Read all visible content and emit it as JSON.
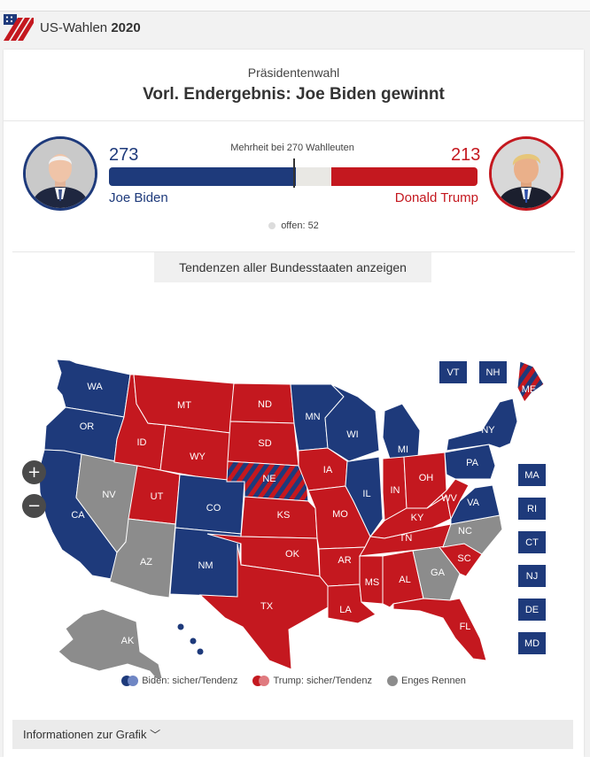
{
  "brand": {
    "prefix": "US-Wahlen",
    "year": "2020"
  },
  "header": {
    "kicker": "Präsidentenwahl",
    "headline": "Vorl. Endergebnis: Joe Biden gewinnt"
  },
  "race": {
    "majority_label": "Mehrheit bei 270 Wahlleuten",
    "total": 538,
    "majority": 270,
    "biden": {
      "name": "Joe Biden",
      "votes": "273",
      "votes_value": 273,
      "color": "#1e3a7b"
    },
    "trump": {
      "name": "Donald Trump",
      "votes": "213",
      "votes_value": 213,
      "color": "#c4181f"
    },
    "open_label": "offen: 52",
    "open_value": 52,
    "open_color": "#e9e8e4"
  },
  "toggle_button": {
    "label": "Tendenzen aller Bundesstaaten anzeigen"
  },
  "colors": {
    "biden": "#1e3a7b",
    "biden_lean": "#6f86c4",
    "trump": "#c4181f",
    "trump_lean": "#e07a7f",
    "tossup": "#8c8c8c"
  },
  "map": {
    "states": [
      {
        "code": "WA",
        "result": "biden"
      },
      {
        "code": "OR",
        "result": "biden"
      },
      {
        "code": "CA",
        "result": "biden"
      },
      {
        "code": "NV",
        "result": "tossup"
      },
      {
        "code": "ID",
        "result": "trump"
      },
      {
        "code": "MT",
        "result": "trump"
      },
      {
        "code": "WY",
        "result": "trump"
      },
      {
        "code": "UT",
        "result": "trump"
      },
      {
        "code": "AZ",
        "result": "tossup"
      },
      {
        "code": "CO",
        "result": "biden"
      },
      {
        "code": "NM",
        "result": "biden"
      },
      {
        "code": "ND",
        "result": "trump"
      },
      {
        "code": "SD",
        "result": "trump"
      },
      {
        "code": "NE",
        "result": "split"
      },
      {
        "code": "KS",
        "result": "trump"
      },
      {
        "code": "OK",
        "result": "trump"
      },
      {
        "code": "TX",
        "result": "trump"
      },
      {
        "code": "MN",
        "result": "biden"
      },
      {
        "code": "IA",
        "result": "trump"
      },
      {
        "code": "MO",
        "result": "trump"
      },
      {
        "code": "AR",
        "result": "trump"
      },
      {
        "code": "LA",
        "result": "trump"
      },
      {
        "code": "WI",
        "result": "biden"
      },
      {
        "code": "IL",
        "result": "biden"
      },
      {
        "code": "MI",
        "result": "biden"
      },
      {
        "code": "IN",
        "result": "trump"
      },
      {
        "code": "OH",
        "result": "trump"
      },
      {
        "code": "KY",
        "result": "trump"
      },
      {
        "code": "TN",
        "result": "trump"
      },
      {
        "code": "MS",
        "result": "trump"
      },
      {
        "code": "AL",
        "result": "trump"
      },
      {
        "code": "GA",
        "result": "tossup"
      },
      {
        "code": "FL",
        "result": "trump"
      },
      {
        "code": "SC",
        "result": "trump"
      },
      {
        "code": "NC",
        "result": "tossup"
      },
      {
        "code": "VA",
        "result": "biden"
      },
      {
        "code": "WV",
        "result": "trump"
      },
      {
        "code": "PA",
        "result": "biden"
      },
      {
        "code": "NY",
        "result": "biden"
      },
      {
        "code": "ME",
        "result": "split"
      },
      {
        "code": "AK",
        "result": "tossup"
      },
      {
        "code": "HI",
        "result": "biden"
      }
    ],
    "small_states": [
      {
        "code": "VT",
        "result": "biden"
      },
      {
        "code": "NH",
        "result": "biden"
      },
      {
        "code": "MA",
        "result": "biden"
      },
      {
        "code": "RI",
        "result": "biden"
      },
      {
        "code": "CT",
        "result": "biden"
      },
      {
        "code": "NJ",
        "result": "biden"
      },
      {
        "code": "DE",
        "result": "biden"
      },
      {
        "code": "MD",
        "result": "biden"
      }
    ]
  },
  "zoom": {
    "in_label": "+",
    "out_label": "−"
  },
  "legend": {
    "biden_label": "Biden: sicher/Tendenz",
    "trump_label": "Trump: sicher/Tendenz",
    "tossup_label": "Enges Rennen"
  },
  "info_button": {
    "label": "Informationen zur Grafik"
  }
}
